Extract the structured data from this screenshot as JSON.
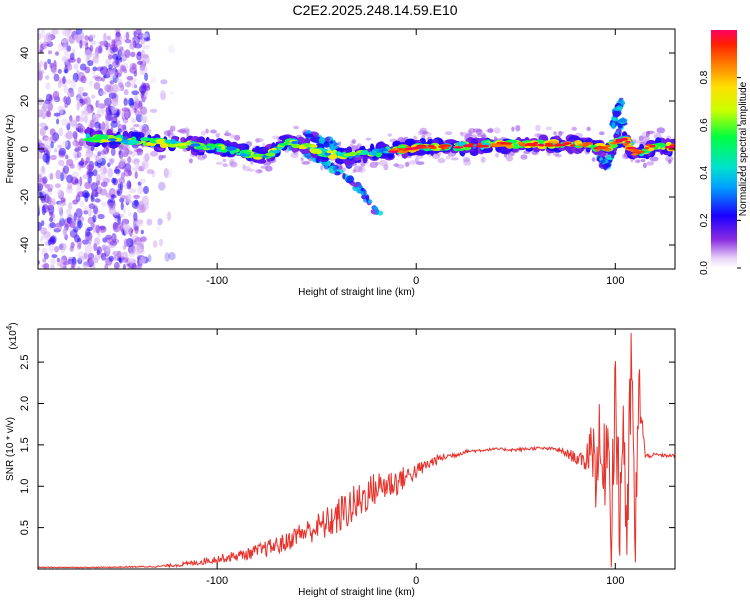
{
  "title": "C2E2.2025.248.14.59.E10",
  "chart_data": [
    {
      "type": "heatmap",
      "title": "C2E2.2025.248.14.59.E10",
      "xlabel": "Height of straight line (km)",
      "ylabel": "Frequency (Hz)",
      "xlim": [
        -190,
        130
      ],
      "ylim": [
        -50,
        50
      ],
      "xticks": [
        -100,
        0,
        100
      ],
      "xtick_labels": [
        "-100",
        "0",
        "100"
      ],
      "yticks": [
        -40,
        -20,
        0,
        20,
        40
      ],
      "ytick_labels": [
        "-40",
        "-20",
        "0",
        "20",
        "40"
      ],
      "ridge": {
        "x": [
          -165,
          -150,
          -135,
          -120,
          -105,
          -95,
          -85,
          -75,
          -65,
          -55,
          -45,
          -35,
          -25,
          -15,
          -5,
          5,
          20,
          40,
          60,
          75,
          85,
          90,
          95,
          100,
          105,
          110,
          120,
          130
        ],
        "y": [
          5,
          4,
          3,
          2,
          1,
          0,
          -2,
          -3,
          3,
          1,
          -2,
          -3,
          -2,
          -1,
          0,
          1,
          1,
          2,
          2,
          2,
          2,
          1,
          0,
          3,
          4,
          -2,
          1,
          1
        ]
      },
      "branches": [
        {
          "x": [
            -65,
            -55,
            -45,
            -38,
            -32,
            -27,
            -22,
            -18
          ],
          "y": [
            2,
            -2,
            -6,
            -10,
            -14,
            -18,
            -24,
            -28
          ]
        },
        {
          "x": [
            -55,
            -48,
            -42,
            -38,
            -33
          ],
          "y": [
            6,
            4,
            2,
            -2,
            -6
          ]
        },
        {
          "x": [
            92,
            96,
            100,
            102,
            104
          ],
          "y": [
            -4,
            -8,
            2,
            8,
            12
          ]
        },
        {
          "x": [
            99,
            101,
            103
          ],
          "y": [
            10,
            16,
            20
          ]
        }
      ],
      "noise_region_x": [
        -190,
        -135
      ],
      "colorbar": {
        "label": "Normalized spectral amplitude",
        "ticks": [
          0.0,
          0.2,
          0.4,
          0.6,
          0.8
        ],
        "tick_labels": [
          "0.0",
          "0.2",
          "0.4",
          "0.6",
          "0.8"
        ],
        "range": [
          0,
          1
        ]
      }
    },
    {
      "type": "line",
      "xlabel": "Height of straight line (km)",
      "ylabel": "SNR (10 * v/v)",
      "y_multiplier_label": "(x10",
      "y_multiplier_exp": "4",
      "xlim": [
        -190,
        130
      ],
      "ylim": [
        0,
        2.9
      ],
      "xticks": [
        -100,
        0,
        100
      ],
      "xtick_labels": [
        "-100",
        "0",
        "100"
      ],
      "yticks": [
        0.5,
        1.0,
        1.5,
        2.0,
        2.5
      ],
      "ytick_labels": [
        "0.5",
        "1.0",
        "1.5",
        "2.0",
        "2.5"
      ],
      "series": [
        {
          "color": "#e8312a",
          "x": [
            -190,
            -160,
            -130,
            -115,
            -100,
            -85,
            -75,
            -65,
            -60,
            -55,
            -50,
            -45,
            -40,
            -35,
            -30,
            -25,
            -20,
            -15,
            -10,
            -5,
            0,
            5,
            10,
            15,
            20,
            25,
            30,
            40,
            50,
            60,
            70,
            75,
            80,
            85,
            88,
            90,
            92,
            94,
            96,
            98,
            100,
            102,
            104,
            106,
            108,
            110,
            112,
            115,
            120,
            125,
            130
          ],
          "y": [
            0.02,
            0.02,
            0.03,
            0.06,
            0.12,
            0.18,
            0.25,
            0.32,
            0.42,
            0.45,
            0.5,
            0.55,
            0.62,
            0.72,
            0.78,
            0.9,
            0.98,
            1.02,
            1.05,
            1.12,
            1.18,
            1.25,
            1.32,
            1.36,
            1.38,
            1.42,
            1.43,
            1.45,
            1.44,
            1.46,
            1.45,
            1.4,
            1.35,
            1.28,
            1.6,
            1.2,
            1.5,
            1.0,
            1.8,
            0.6,
            2.3,
            0.5,
            1.9,
            0.2,
            2.6,
            0.3,
            2.2,
            1.36,
            1.38,
            1.37,
            1.37
          ],
          "noise": [
            0.005,
            0.005,
            0.01,
            0.03,
            0.05,
            0.07,
            0.1,
            0.12,
            0.12,
            0.15,
            0.17,
            0.2,
            0.22,
            0.25,
            0.25,
            0.22,
            0.2,
            0.2,
            0.18,
            0.12,
            0.1,
            0.08,
            0.06,
            0.04,
            0.03,
            0.02,
            0.02,
            0.015,
            0.02,
            0.02,
            0.02,
            0.05,
            0.08,
            0.1,
            0.4,
            0.5,
            0.5,
            0.6,
            0.6,
            0.6,
            0.7,
            0.7,
            0.7,
            0.7,
            0.7,
            0.6,
            0.4,
            0.03,
            0.02,
            0.02,
            0.02
          ]
        }
      ]
    }
  ]
}
